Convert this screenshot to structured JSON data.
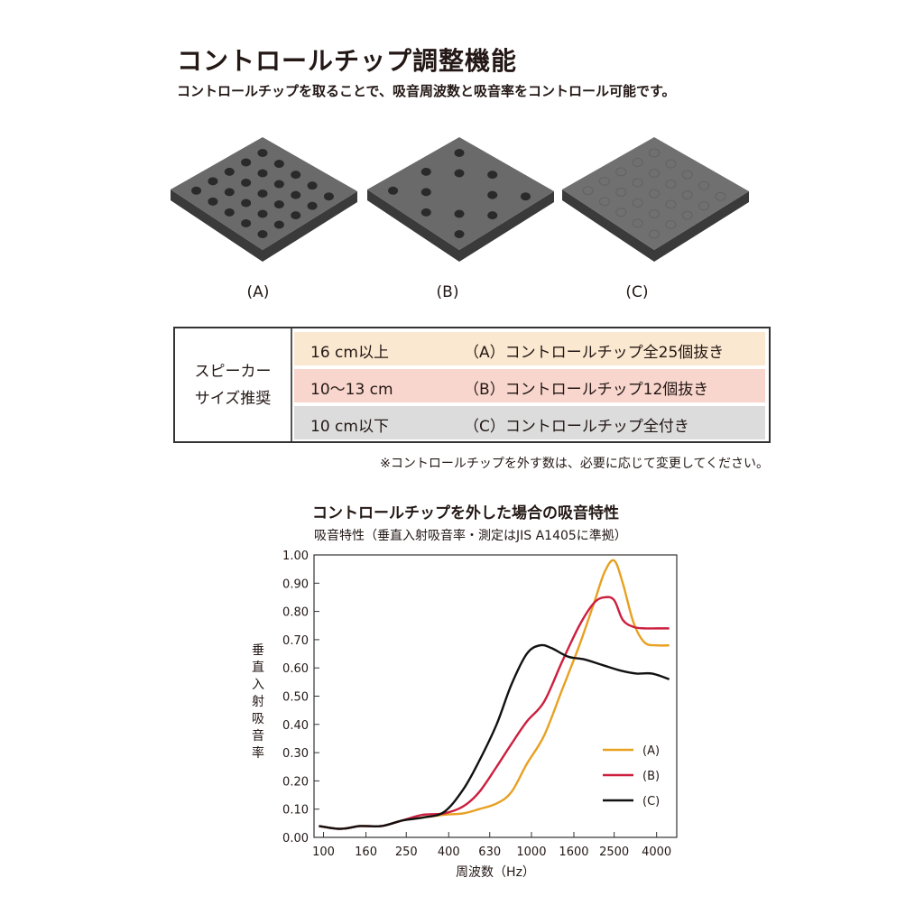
{
  "header": {
    "title": "コントロールチップ調整機能",
    "subtitle": "コントロールチップを取ることで、吸音周波数と吸音率をコントロール可能です。"
  },
  "tiles": [
    {
      "label": "(A)"
    },
    {
      "label": "(B)"
    },
    {
      "label": "(C)"
    }
  ],
  "spec_table": {
    "heading_line1": "スピーカー",
    "heading_line2": "サイズ推奨",
    "rows": [
      {
        "size": "16 cm以上",
        "desc": "（A）コントロールチップ全25個抜き",
        "color": "#fbe8d0"
      },
      {
        "size": "10〜13 cm",
        "desc": "（B）コントロールチップ12個抜き",
        "color": "#f8d6cd"
      },
      {
        "size": "10 cm以下",
        "desc": "（C）コントロールチップ全付き",
        "color": "#dcdcdc"
      }
    ]
  },
  "note": "※コントロールチップを外す数は、必要に応じて変更してください。",
  "chart_data": {
    "type": "line",
    "title": "コントロールチップを外した場合の吸音特性",
    "subtitle": "吸音特性（垂直入射吸音率・測定はJIS A1405に準拠）",
    "xlabel": "周波数（Hz）",
    "ylabel": "垂直入射吸音率",
    "x_scale": "log",
    "xlim": [
      90,
      5000
    ],
    "ylim": [
      0,
      1.0
    ],
    "x_ticks": [
      100,
      160,
      250,
      400,
      630,
      1000,
      1600,
      2500,
      4000
    ],
    "y_ticks": [
      0.0,
      0.1,
      0.2,
      0.3,
      0.4,
      0.5,
      0.6,
      0.7,
      0.8,
      0.9,
      1.0
    ],
    "y_tick_labels": [
      "0.00",
      "0.10",
      "0.20",
      "0.30",
      "0.40",
      "0.50",
      "0.60",
      "0.70",
      "0.80",
      "0.90",
      "1.00"
    ],
    "legend_position": "right",
    "series": [
      {
        "name": "(A)",
        "color": "#e8a020",
        "x": [
          95,
          120,
          150,
          190,
          240,
          300,
          380,
          470,
          560,
          680,
          800,
          950,
          1150,
          1400,
          1700,
          2000,
          2250,
          2500,
          2750,
          3100,
          3500,
          4000,
          4600
        ],
        "y": [
          0.04,
          0.03,
          0.04,
          0.04,
          0.06,
          0.07,
          0.08,
          0.085,
          0.1,
          0.12,
          0.16,
          0.26,
          0.36,
          0.52,
          0.68,
          0.83,
          0.94,
          0.98,
          0.9,
          0.76,
          0.69,
          0.68,
          0.68
        ]
      },
      {
        "name": "(B)",
        "color": "#cc1f3e",
        "x": [
          95,
          120,
          150,
          190,
          240,
          300,
          380,
          470,
          560,
          680,
          800,
          950,
          1150,
          1400,
          1700,
          2000,
          2250,
          2500,
          2750,
          3100,
          3500,
          4000,
          4600
        ],
        "y": [
          0.04,
          0.03,
          0.04,
          0.04,
          0.06,
          0.08,
          0.085,
          0.11,
          0.16,
          0.25,
          0.33,
          0.41,
          0.48,
          0.62,
          0.75,
          0.83,
          0.85,
          0.84,
          0.77,
          0.745,
          0.74,
          0.74,
          0.74
        ]
      },
      {
        "name": "(C)",
        "color": "#111111",
        "x": [
          95,
          120,
          150,
          190,
          240,
          300,
          380,
          470,
          560,
          680,
          800,
          950,
          1100,
          1250,
          1500,
          1800,
          2200,
          2700,
          3200,
          3800,
          4600
        ],
        "y": [
          0.04,
          0.03,
          0.04,
          0.04,
          0.06,
          0.07,
          0.09,
          0.17,
          0.27,
          0.4,
          0.54,
          0.65,
          0.68,
          0.67,
          0.64,
          0.63,
          0.61,
          0.59,
          0.58,
          0.58,
          0.56
        ]
      }
    ]
  }
}
